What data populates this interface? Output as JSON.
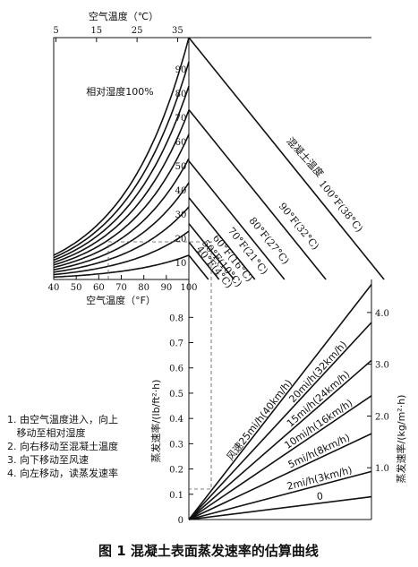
{
  "caption": "图 1   混凝土表面蒸发速率的估算曲线",
  "instructions": [
    "1. 由空气温度进入，向上",
    "   移动至相对湿度",
    "2. 向右移动至混凝土温度",
    "3. 向下移动至风速",
    "4. 向左移动，读蒸发速率"
  ],
  "chart_data": [
    {
      "type": "line",
      "panel": "air-temperature-vs-relative-humidity",
      "top_axis_title": "空气温度（℃）",
      "top_ticks": [
        "5",
        "15",
        "25",
        "35"
      ],
      "top_tick_values": [
        5,
        15,
        25,
        35
      ],
      "xlabel": "空气温度（°F）",
      "xlim": [
        40,
        100
      ],
      "x_ticks": [
        "40",
        "50",
        "60",
        "70",
        "80",
        "90",
        "100"
      ],
      "x_tick_values": [
        40,
        50,
        60,
        70,
        80,
        90,
        100
      ],
      "humidity_curves": [
        10,
        20,
        30,
        40,
        50,
        60,
        70,
        80,
        90,
        100
      ],
      "humidity_labels": [
        "10",
        "20",
        "30",
        "40",
        "50",
        "60",
        "70",
        "80",
        "90",
        "相对湿度100%"
      ]
    },
    {
      "type": "line",
      "panel": "concrete-temperature",
      "title": "混凝土温度",
      "series": [
        {
          "name": "40°F(4°C)",
          "value_f": 40
        },
        {
          "name": "50°F(10°C)",
          "value_f": 50
        },
        {
          "name": "60°F(16°C)",
          "value_f": 60
        },
        {
          "name": "70°F(21°C)",
          "value_f": 70
        },
        {
          "name": "80°F(27°C)",
          "value_f": 80
        },
        {
          "name": "90°F(32°C)",
          "value_f": 90
        },
        {
          "name": "100°F(38°C)",
          "value_f": 100
        }
      ]
    },
    {
      "type": "line",
      "panel": "wind-speed-vs-evaporation-rate",
      "ylabel_left": "蒸发速率/(lb/ft²·h)",
      "ylim_left": [
        0,
        0.95
      ],
      "y_ticks_left": [
        "0",
        "0.1",
        "0.2",
        "0.3",
        "0.4",
        "0.5",
        "0.6",
        "0.7",
        "0.8"
      ],
      "y_tick_values_left": [
        0,
        0.1,
        0.2,
        0.3,
        0.4,
        0.5,
        0.6,
        0.7,
        0.8
      ],
      "ylabel_right": "蒸发速率/(kg/m²·h)",
      "y_ticks_right": [
        "1.0",
        "2.0",
        "3.0",
        "4.0"
      ],
      "y_tick_values_right": [
        1.0,
        2.0,
        3.0,
        4.0
      ],
      "series": [
        {
          "name": "0",
          "end_value": 0.09
        },
        {
          "name": "2mi/h(3km/h)",
          "end_value": 0.19
        },
        {
          "name": "5mi/h(8km/h)",
          "end_value": 0.34
        },
        {
          "name": "10mi/h(16km/h)",
          "end_value": 0.49
        },
        {
          "name": "15mi/h(24km/h)",
          "end_value": 0.63
        },
        {
          "name": "20mi/h(32km/h)",
          "end_value": 0.78
        },
        {
          "name": "风速25mi/h(40km/h)",
          "end_value": 0.93
        }
      ],
      "example_path_reading": 0.13
    }
  ]
}
